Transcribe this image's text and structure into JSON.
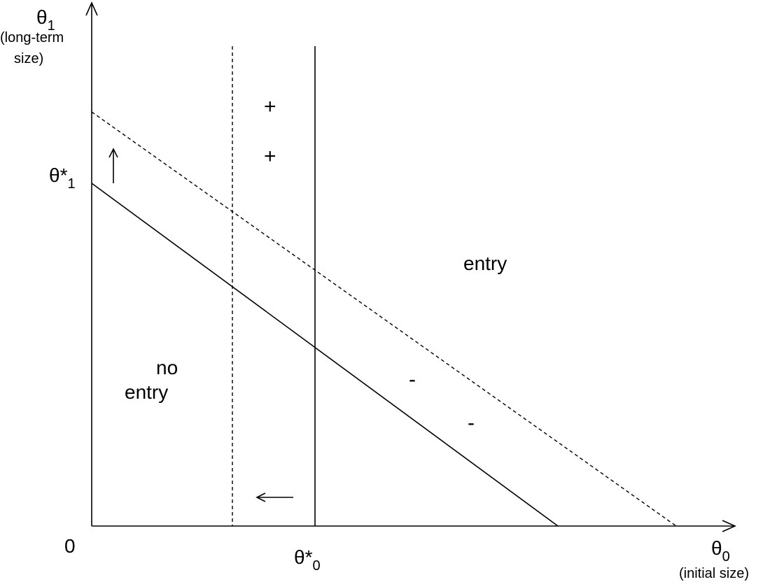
{
  "axes": {
    "y_symbol": "θ",
    "y_subscript": "1",
    "y_caption_line1": "(long-term",
    "y_caption_line2": "size)",
    "x_symbol": "θ",
    "x_subscript": "0",
    "x_caption": "(initial size)",
    "origin_label": "0"
  },
  "thresholds": {
    "theta1_star": "θ*",
    "theta1_star_sub": "1",
    "theta0_star": "θ*",
    "theta0_star_sub": "0"
  },
  "regions": {
    "no_entry_line1": "no",
    "no_entry_line2": "entry",
    "entry": "entry"
  },
  "signs": {
    "plus": "+",
    "minus": "-"
  }
}
